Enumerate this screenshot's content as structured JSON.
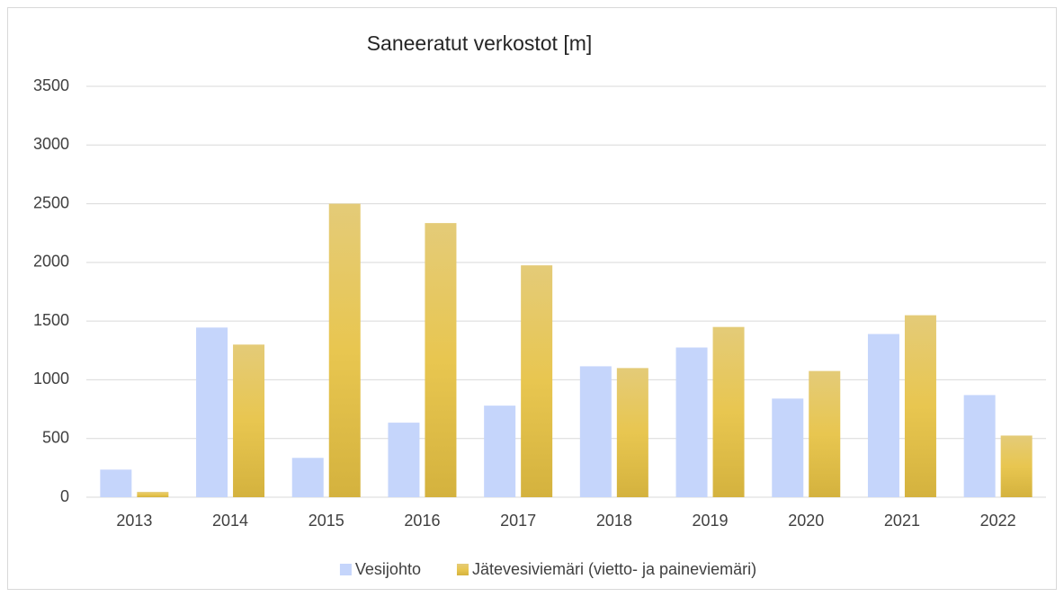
{
  "chart_data": {
    "type": "bar",
    "title": "Saneeratut verkostot [m]",
    "categories": [
      "2013",
      "2014",
      "2015",
      "2016",
      "2017",
      "2018",
      "2019",
      "2020",
      "2021",
      "2022"
    ],
    "series": [
      {
        "name": "Vesijohto",
        "color": "#c5d5fb",
        "values": [
          235,
          1445,
          335,
          635,
          780,
          1115,
          1275,
          840,
          1390,
          870
        ]
      },
      {
        "name": "Jätevesiviemäri (vietto- ja paineviemäri)",
        "color": "#dcbc4c",
        "values": [
          45,
          1300,
          2500,
          2335,
          1975,
          1100,
          1450,
          1075,
          1550,
          525
        ]
      }
    ],
    "ylim": [
      0,
      3500
    ],
    "yticks": [
      0,
      500,
      1000,
      1500,
      2000,
      2500,
      3000,
      3500
    ],
    "grid": true,
    "legend": "bottom"
  }
}
